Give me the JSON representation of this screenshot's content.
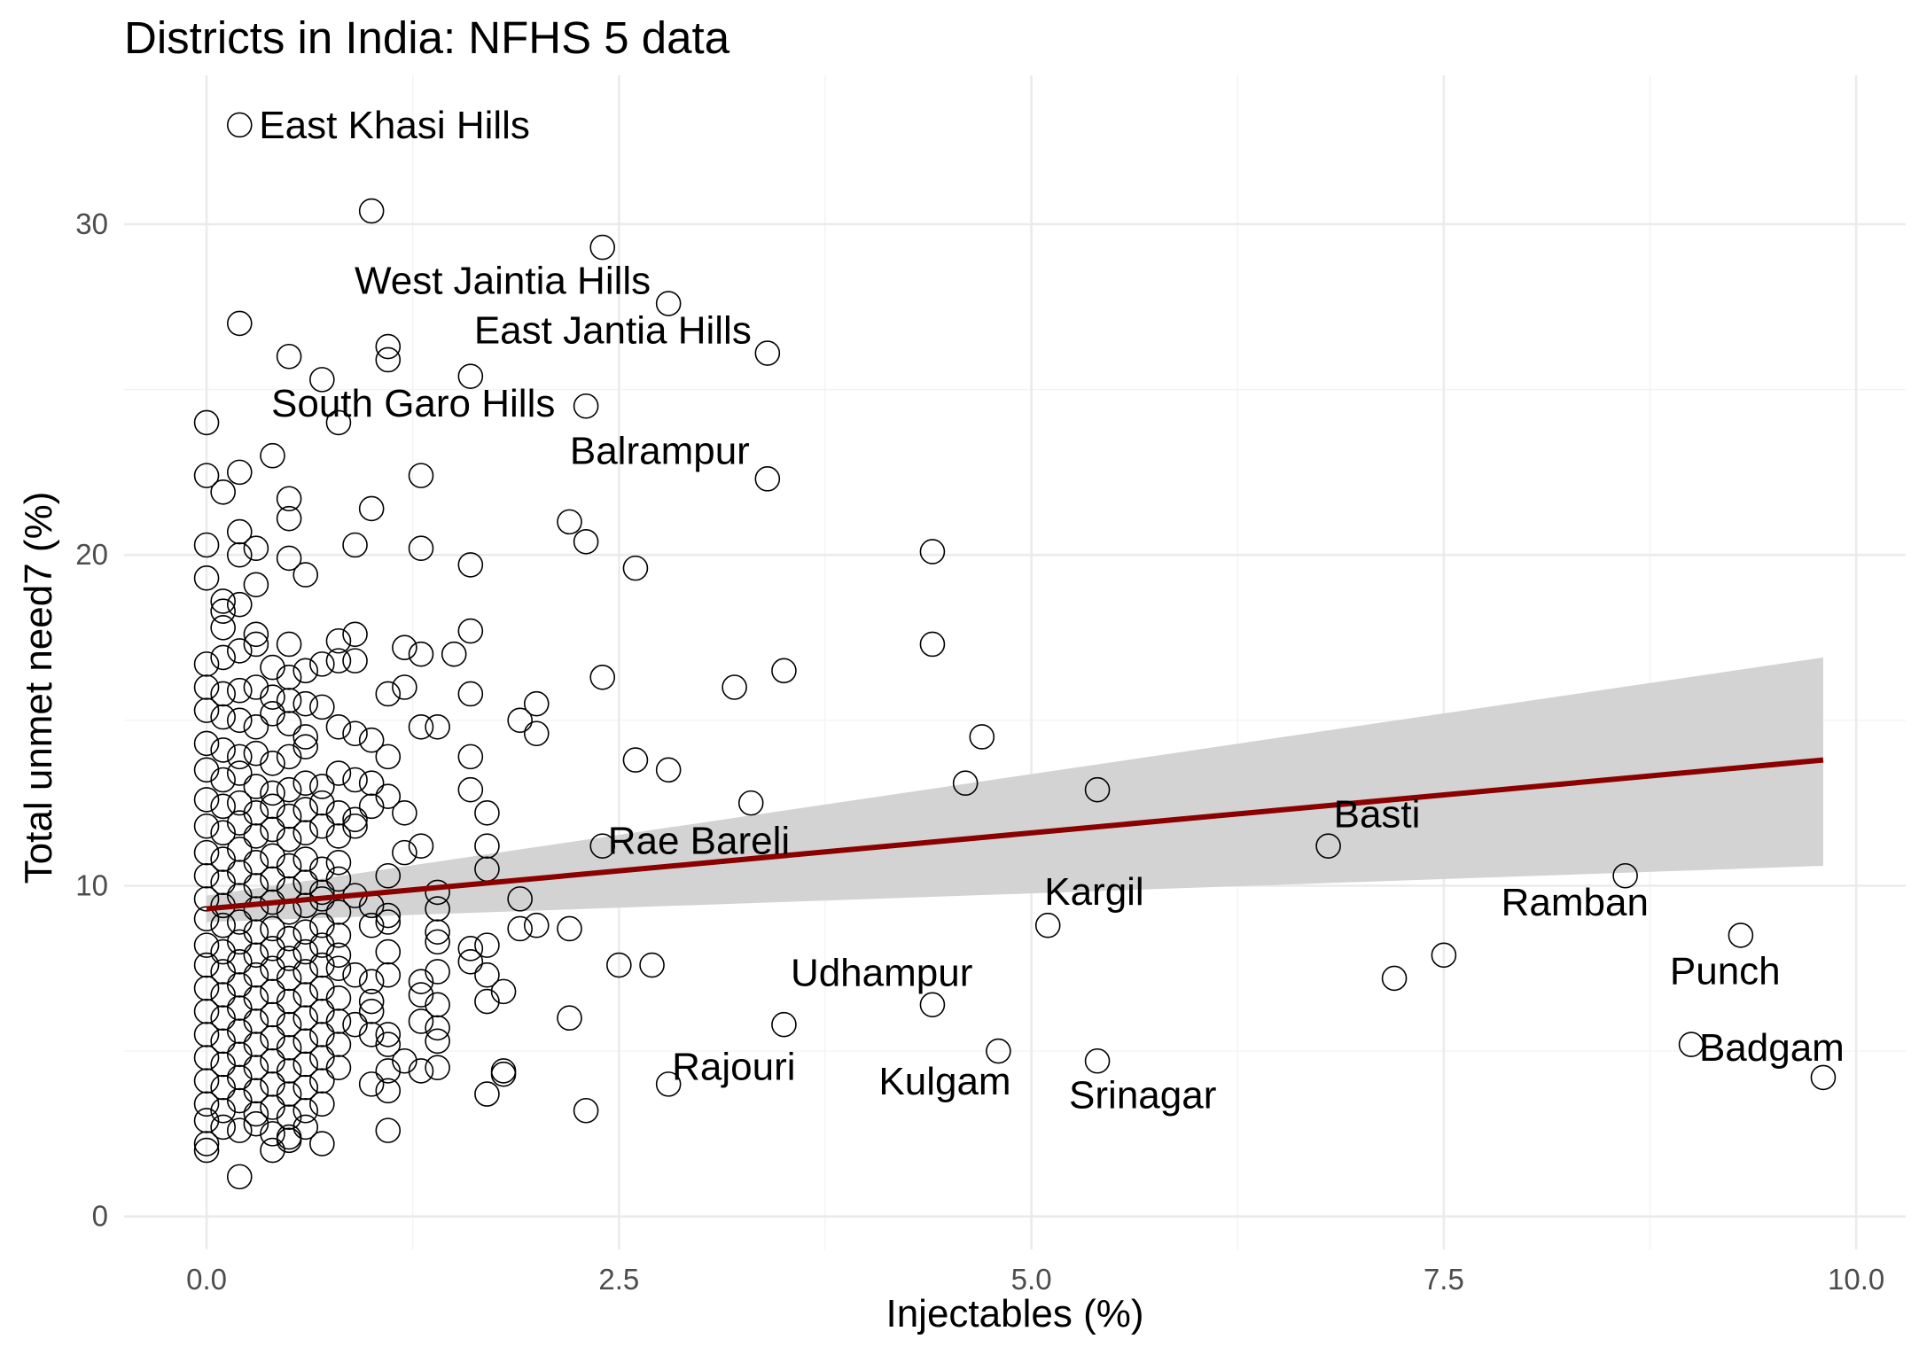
{
  "chart_data": {
    "type": "scatter",
    "title": "Districts in India: NFHS 5 data",
    "xlabel": "Injectables (%)",
    "ylabel": "Total unmet need7 (%)",
    "xlim": [
      -0.5,
      10.3
    ],
    "ylim": [
      -1.0,
      34.5
    ],
    "x_ticks": [
      0.0,
      2.5,
      5.0,
      7.5,
      10.0
    ],
    "x_tick_labels": [
      "0.0",
      "2.5",
      "5.0",
      "7.5",
      "10.0"
    ],
    "y_ticks": [
      0,
      10,
      20,
      30
    ],
    "y_tick_labels": [
      "0",
      "10",
      "20",
      "30"
    ],
    "grid": true,
    "legend": "none",
    "colors": {
      "points": "#000000",
      "trend": "#8b0000",
      "band": "#d3d3d3"
    },
    "trend": {
      "x": [
        0.0,
        9.8
      ],
      "y": [
        9.3,
        13.8
      ],
      "ci_lower": [
        8.9,
        10.6
      ],
      "ci_upper": [
        9.7,
        16.9
      ]
    },
    "labeled_points": [
      {
        "label": "East Khasi Hills",
        "x": 0.2,
        "y": 33.0
      },
      {
        "label": "West Jaintia Hills",
        "x": 2.8,
        "y": 27.6
      },
      {
        "label": "East Jantia Hills",
        "x": 3.4,
        "y": 26.1
      },
      {
        "label": "South Garo Hills",
        "x": 0.8,
        "y": 24.0
      },
      {
        "label": "Balrampur",
        "x": 3.4,
        "y": 22.3
      },
      {
        "label": "Rae Bareli",
        "x": 2.4,
        "y": 11.2
      },
      {
        "label": "Basti",
        "x": 6.8,
        "y": 11.2
      },
      {
        "label": "Kargil",
        "x": 5.1,
        "y": 8.8
      },
      {
        "label": "Ramban",
        "x": 8.6,
        "y": 10.3
      },
      {
        "label": "Udhampur",
        "x": 4.4,
        "y": 6.3
      },
      {
        "label": "Punch",
        "x": 9.3,
        "y": 8.5
      },
      {
        "label": "Rajouri",
        "x": 2.8,
        "y": 4.0
      },
      {
        "label": "Kulgam",
        "x": 4.8,
        "y": 5.0
      },
      {
        "label": "Srinagar",
        "x": 5.4,
        "y": 4.7
      },
      {
        "label": "Badgam",
        "x": 9.8,
        "y": 4.2
      }
    ],
    "points": [
      [
        0.2,
        33.0
      ],
      [
        1.0,
        30.4
      ],
      [
        2.4,
        29.3
      ],
      [
        0.2,
        27.0
      ],
      [
        2.8,
        27.6
      ],
      [
        1.1,
        26.3
      ],
      [
        1.1,
        25.9
      ],
      [
        0.5,
        26.0
      ],
      [
        0.7,
        25.3
      ],
      [
        1.6,
        25.4
      ],
      [
        3.4,
        26.1
      ],
      [
        2.3,
        24.5
      ],
      [
        0.0,
        24.0
      ],
      [
        0.8,
        24.0
      ],
      [
        0.4,
        23.0
      ],
      [
        0.0,
        22.4
      ],
      [
        0.2,
        22.5
      ],
      [
        0.1,
        21.9
      ],
      [
        1.3,
        22.4
      ],
      [
        3.4,
        22.3
      ],
      [
        0.5,
        21.7
      ],
      [
        0.5,
        21.1
      ],
      [
        1.0,
        21.4
      ],
      [
        2.2,
        21.0
      ],
      [
        0.2,
        20.7
      ],
      [
        0.0,
        20.3
      ],
      [
        0.2,
        20.0
      ],
      [
        0.3,
        20.2
      ],
      [
        0.5,
        19.9
      ],
      [
        0.9,
        20.3
      ],
      [
        1.3,
        20.2
      ],
      [
        2.3,
        20.4
      ],
      [
        4.4,
        20.1
      ],
      [
        0.6,
        19.4
      ],
      [
        1.6,
        19.7
      ],
      [
        2.6,
        19.6
      ],
      [
        0.0,
        19.3
      ],
      [
        0.3,
        19.1
      ],
      [
        0.1,
        18.6
      ],
      [
        0.2,
        18.5
      ],
      [
        0.1,
        18.3
      ],
      [
        0.1,
        17.8
      ],
      [
        0.3,
        17.6
      ],
      [
        0.5,
        17.3
      ],
      [
        0.8,
        17.4
      ],
      [
        0.9,
        17.6
      ],
      [
        1.2,
        17.2
      ],
      [
        1.3,
        17.0
      ],
      [
        1.5,
        17.0
      ],
      [
        1.6,
        17.7
      ],
      [
        4.4,
        17.3
      ],
      [
        0.0,
        16.7
      ],
      [
        0.1,
        16.9
      ],
      [
        0.2,
        17.1
      ],
      [
        0.3,
        17.3
      ],
      [
        0.4,
        16.6
      ],
      [
        0.5,
        16.3
      ],
      [
        0.6,
        16.5
      ],
      [
        0.7,
        16.7
      ],
      [
        0.8,
        16.8
      ],
      [
        0.9,
        16.8
      ],
      [
        2.4,
        16.3
      ],
      [
        3.5,
        16.5
      ],
      [
        0.0,
        16.0
      ],
      [
        0.1,
        15.8
      ],
      [
        0.2,
        15.9
      ],
      [
        0.3,
        16.0
      ],
      [
        0.4,
        15.7
      ],
      [
        0.5,
        15.6
      ],
      [
        0.6,
        15.5
      ],
      [
        0.7,
        15.4
      ],
      [
        1.1,
        15.8
      ],
      [
        1.2,
        16.0
      ],
      [
        1.6,
        15.8
      ],
      [
        3.2,
        16.0
      ],
      [
        0.0,
        15.3
      ],
      [
        0.1,
        15.1
      ],
      [
        0.2,
        15.0
      ],
      [
        0.3,
        14.8
      ],
      [
        0.4,
        15.2
      ],
      [
        0.5,
        14.9
      ],
      [
        0.6,
        14.5
      ],
      [
        0.8,
        14.8
      ],
      [
        0.9,
        14.6
      ],
      [
        1.0,
        14.4
      ],
      [
        1.3,
        14.8
      ],
      [
        1.4,
        14.8
      ],
      [
        1.9,
        15.0
      ],
      [
        2.0,
        15.5
      ],
      [
        2.0,
        14.6
      ],
      [
        4.7,
        14.5
      ],
      [
        0.0,
        14.3
      ],
      [
        0.1,
        14.1
      ],
      [
        0.2,
        13.9
      ],
      [
        0.3,
        14.0
      ],
      [
        0.4,
        13.7
      ],
      [
        0.5,
        13.9
      ],
      [
        0.6,
        14.2
      ],
      [
        1.1,
        13.9
      ],
      [
        1.6,
        13.9
      ],
      [
        2.6,
        13.8
      ],
      [
        2.8,
        13.5
      ],
      [
        0.0,
        13.5
      ],
      [
        0.1,
        13.2
      ],
      [
        0.2,
        13.4
      ],
      [
        0.3,
        13.0
      ],
      [
        0.4,
        12.8
      ],
      [
        0.5,
        12.9
      ],
      [
        0.6,
        13.1
      ],
      [
        0.7,
        13.0
      ],
      [
        0.8,
        13.4
      ],
      [
        0.9,
        13.2
      ],
      [
        1.0,
        13.1
      ],
      [
        1.6,
        12.9
      ],
      [
        4.6,
        13.1
      ],
      [
        5.4,
        12.9
      ],
      [
        0.0,
        12.6
      ],
      [
        0.1,
        12.4
      ],
      [
        0.2,
        12.5
      ],
      [
        0.3,
        12.2
      ],
      [
        0.4,
        12.4
      ],
      [
        0.5,
        12.1
      ],
      [
        0.6,
        12.3
      ],
      [
        0.7,
        12.5
      ],
      [
        0.8,
        12.2
      ],
      [
        0.9,
        12.0
      ],
      [
        1.0,
        12.4
      ],
      [
        1.1,
        12.7
      ],
      [
        1.2,
        12.2
      ],
      [
        1.7,
        12.2
      ],
      [
        3.3,
        12.5
      ],
      [
        0.0,
        11.8
      ],
      [
        0.1,
        11.6
      ],
      [
        0.2,
        11.9
      ],
      [
        0.3,
        11.5
      ],
      [
        0.4,
        11.7
      ],
      [
        0.5,
        11.4
      ],
      [
        0.6,
        11.6
      ],
      [
        0.7,
        11.8
      ],
      [
        0.8,
        11.5
      ],
      [
        0.9,
        11.8
      ],
      [
        1.3,
        11.2
      ],
      [
        1.7,
        11.2
      ],
      [
        2.4,
        11.2
      ],
      [
        6.8,
        11.2
      ],
      [
        0.0,
        11.0
      ],
      [
        0.1,
        10.8
      ],
      [
        0.2,
        11.1
      ],
      [
        0.3,
        10.7
      ],
      [
        0.4,
        10.9
      ],
      [
        0.5,
        10.6
      ],
      [
        0.6,
        10.8
      ],
      [
        0.7,
        10.5
      ],
      [
        0.8,
        10.7
      ],
      [
        1.2,
        11.0
      ],
      [
        1.7,
        10.5
      ],
      [
        8.6,
        10.3
      ],
      [
        0.0,
        10.3
      ],
      [
        0.1,
        10.1
      ],
      [
        0.2,
        10.4
      ],
      [
        0.3,
        10.0
      ],
      [
        0.4,
        10.2
      ],
      [
        0.5,
        9.9
      ],
      [
        0.6,
        10.1
      ],
      [
        0.7,
        9.8
      ],
      [
        0.8,
        10.2
      ],
      [
        1.1,
        10.3
      ],
      [
        1.4,
        9.8
      ],
      [
        0.0,
        9.6
      ],
      [
        0.1,
        9.4
      ],
      [
        0.2,
        9.7
      ],
      [
        0.3,
        9.3
      ],
      [
        0.4,
        9.5
      ],
      [
        0.5,
        9.2
      ],
      [
        0.6,
        9.4
      ],
      [
        0.7,
        9.6
      ],
      [
        0.8,
        9.2
      ],
      [
        0.9,
        9.7
      ],
      [
        1.0,
        9.4
      ],
      [
        1.1,
        9.1
      ],
      [
        1.4,
        9.3
      ],
      [
        1.9,
        9.6
      ],
      [
        0.0,
        9.0
      ],
      [
        0.1,
        8.8
      ],
      [
        0.2,
        8.9
      ],
      [
        0.3,
        8.6
      ],
      [
        0.4,
        8.7
      ],
      [
        0.5,
        8.4
      ],
      [
        0.6,
        8.6
      ],
      [
        0.7,
        8.8
      ],
      [
        0.8,
        8.5
      ],
      [
        1.0,
        8.8
      ],
      [
        1.1,
        8.9
      ],
      [
        1.4,
        8.6
      ],
      [
        1.9,
        8.7
      ],
      [
        2.0,
        8.8
      ],
      [
        2.2,
        8.7
      ],
      [
        5.1,
        8.8
      ],
      [
        9.3,
        8.5
      ],
      [
        0.0,
        8.2
      ],
      [
        0.1,
        8.0
      ],
      [
        0.2,
        8.3
      ],
      [
        0.3,
        7.9
      ],
      [
        0.4,
        8.1
      ],
      [
        0.5,
        7.8
      ],
      [
        0.6,
        8.0
      ],
      [
        0.7,
        8.2
      ],
      [
        0.8,
        7.9
      ],
      [
        1.1,
        8.0
      ],
      [
        1.4,
        8.3
      ],
      [
        1.6,
        8.1
      ],
      [
        1.7,
        8.2
      ],
      [
        7.5,
        7.9
      ],
      [
        0.0,
        7.6
      ],
      [
        0.1,
        7.4
      ],
      [
        0.2,
        7.7
      ],
      [
        0.3,
        7.3
      ],
      [
        0.4,
        7.5
      ],
      [
        0.5,
        7.2
      ],
      [
        0.6,
        7.4
      ],
      [
        0.7,
        7.6
      ],
      [
        0.8,
        7.5
      ],
      [
        0.9,
        7.3
      ],
      [
        1.0,
        7.1
      ],
      [
        1.1,
        7.3
      ],
      [
        1.3,
        7.1
      ],
      [
        1.4,
        7.4
      ],
      [
        1.6,
        7.7
      ],
      [
        1.7,
        7.3
      ],
      [
        2.5,
        7.6
      ],
      [
        2.7,
        7.6
      ],
      [
        7.2,
        7.2
      ],
      [
        0.0,
        6.9
      ],
      [
        0.1,
        6.7
      ],
      [
        0.2,
        7.0
      ],
      [
        0.3,
        6.6
      ],
      [
        0.4,
        6.8
      ],
      [
        0.5,
        6.5
      ],
      [
        0.6,
        6.7
      ],
      [
        0.7,
        6.9
      ],
      [
        0.8,
        6.6
      ],
      [
        1.0,
        6.5
      ],
      [
        1.3,
        6.7
      ],
      [
        1.4,
        6.4
      ],
      [
        1.7,
        6.5
      ],
      [
        1.8,
        6.8
      ],
      [
        0.0,
        6.2
      ],
      [
        0.1,
        6.0
      ],
      [
        0.2,
        6.3
      ],
      [
        0.3,
        5.9
      ],
      [
        0.4,
        6.1
      ],
      [
        0.5,
        5.8
      ],
      [
        0.6,
        6.0
      ],
      [
        0.7,
        6.2
      ],
      [
        0.8,
        5.9
      ],
      [
        0.9,
        5.8
      ],
      [
        1.0,
        6.2
      ],
      [
        1.1,
        5.5
      ],
      [
        1.3,
        5.9
      ],
      [
        1.4,
        5.7
      ],
      [
        2.2,
        6.0
      ],
      [
        3.5,
        5.8
      ],
      [
        4.4,
        6.4
      ],
      [
        0.0,
        5.5
      ],
      [
        0.1,
        5.3
      ],
      [
        0.2,
        5.6
      ],
      [
        0.3,
        5.2
      ],
      [
        0.4,
        5.4
      ],
      [
        0.5,
        5.1
      ],
      [
        0.6,
        5.3
      ],
      [
        0.7,
        5.5
      ],
      [
        0.8,
        5.2
      ],
      [
        1.0,
        5.5
      ],
      [
        1.1,
        5.2
      ],
      [
        1.4,
        5.3
      ],
      [
        4.8,
        5.0
      ],
      [
        5.4,
        4.7
      ],
      [
        9.0,
        5.2
      ],
      [
        0.0,
        4.8
      ],
      [
        0.1,
        4.6
      ],
      [
        0.2,
        4.9
      ],
      [
        0.3,
        4.5
      ],
      [
        0.4,
        4.7
      ],
      [
        0.5,
        4.4
      ],
      [
        0.6,
        4.6
      ],
      [
        0.7,
        4.8
      ],
      [
        0.8,
        4.5
      ],
      [
        1.1,
        4.4
      ],
      [
        1.2,
        4.7
      ],
      [
        1.3,
        4.4
      ],
      [
        1.4,
        4.5
      ],
      [
        1.8,
        4.3
      ],
      [
        1.8,
        4.4
      ],
      [
        9.8,
        4.2
      ],
      [
        0.0,
        4.1
      ],
      [
        0.1,
        3.9
      ],
      [
        0.2,
        4.2
      ],
      [
        0.3,
        3.8
      ],
      [
        0.4,
        4.0
      ],
      [
        0.5,
        3.7
      ],
      [
        0.6,
        3.9
      ],
      [
        0.7,
        4.1
      ],
      [
        1.0,
        4.0
      ],
      [
        1.1,
        3.8
      ],
      [
        1.7,
        3.7
      ],
      [
        2.8,
        4.0
      ],
      [
        0.0,
        3.4
      ],
      [
        0.1,
        3.2
      ],
      [
        0.2,
        3.5
      ],
      [
        0.3,
        3.1
      ],
      [
        0.4,
        3.3
      ],
      [
        0.5,
        3.0
      ],
      [
        0.6,
        3.2
      ],
      [
        0.7,
        3.4
      ],
      [
        2.3,
        3.2
      ],
      [
        0.0,
        2.9
      ],
      [
        0.1,
        2.7
      ],
      [
        0.2,
        2.6
      ],
      [
        0.3,
        2.8
      ],
      [
        0.4,
        2.5
      ],
      [
        0.5,
        2.4
      ],
      [
        0.6,
        2.7
      ],
      [
        1.1,
        2.6
      ],
      [
        0.0,
        2.2
      ],
      [
        0.0,
        2.0
      ],
      [
        0.4,
        2.0
      ],
      [
        0.5,
        2.3
      ],
      [
        0.7,
        2.2
      ],
      [
        0.2,
        1.2
      ]
    ]
  }
}
